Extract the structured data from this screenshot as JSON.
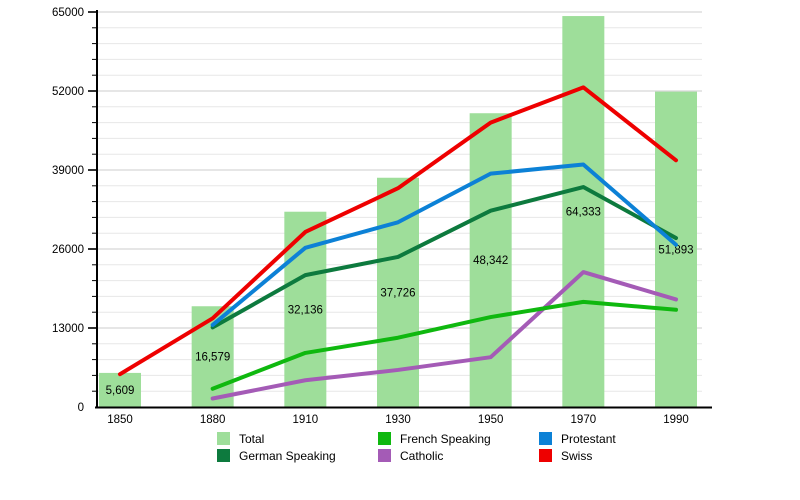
{
  "chart_data": {
    "type": "bar",
    "subtype": "bar-with-lines",
    "title": "",
    "xlabel": "",
    "ylabel": "",
    "categories": [
      "1850",
      "1880",
      "1910",
      "1930",
      "1950",
      "1970",
      "1990"
    ],
    "y_axis": {
      "min": 0,
      "max": 65000,
      "major_tick_interval": 13000,
      "minor_tick_interval": 2600,
      "major_tick_labels": [
        "0",
        "13000",
        "26000",
        "39000",
        "52000",
        "65000"
      ],
      "grid": "on"
    },
    "bar_series": {
      "name": "Total",
      "color": "#9ede9a",
      "values": [
        5609,
        16579,
        32136,
        37726,
        48342,
        64333,
        51893
      ],
      "value_labels": [
        "5,609",
        "16,579",
        "32,136",
        "37,726",
        "48,342",
        "64,333",
        "51,893"
      ]
    },
    "line_series": [
      {
        "name": "Catholic",
        "color": "#a45bb6",
        "values": [
          null,
          1400,
          4400,
          6100,
          8200,
          22200,
          17700
        ]
      },
      {
        "name": "French Speaking",
        "color": "#0fb80f",
        "values": [
          null,
          3000,
          8900,
          11400,
          14800,
          17300,
          16000
        ]
      },
      {
        "name": "German Speaking",
        "color": "#0d7a3e",
        "values": [
          null,
          13100,
          21700,
          24700,
          32300,
          36200,
          27800
        ]
      },
      {
        "name": "Protestant",
        "color": "#0c81d6",
        "values": [
          null,
          13500,
          26200,
          30400,
          38400,
          39900,
          26700
        ]
      },
      {
        "name": "Swiss",
        "color": "#ee0000",
        "values": [
          5400,
          14600,
          28800,
          36000,
          46800,
          52600,
          40600
        ]
      }
    ],
    "legend": {
      "position": "bottom",
      "entries": [
        {
          "label": "Total",
          "color": "#9ede9a"
        },
        {
          "label": "French Speaking",
          "color": "#0fb80f"
        },
        {
          "label": "Protestant",
          "color": "#0c81d6"
        },
        {
          "label": "German Speaking",
          "color": "#0d7a3e"
        },
        {
          "label": "Catholic",
          "color": "#a45bb6"
        },
        {
          "label": "Swiss",
          "color": "#ee0000"
        }
      ]
    },
    "colors": {
      "background": "#ffffff",
      "axis": "#000000",
      "major_gridline": "#cccccc",
      "minor_gridline": "#e7e7e7",
      "label_text": "#000000"
    }
  }
}
